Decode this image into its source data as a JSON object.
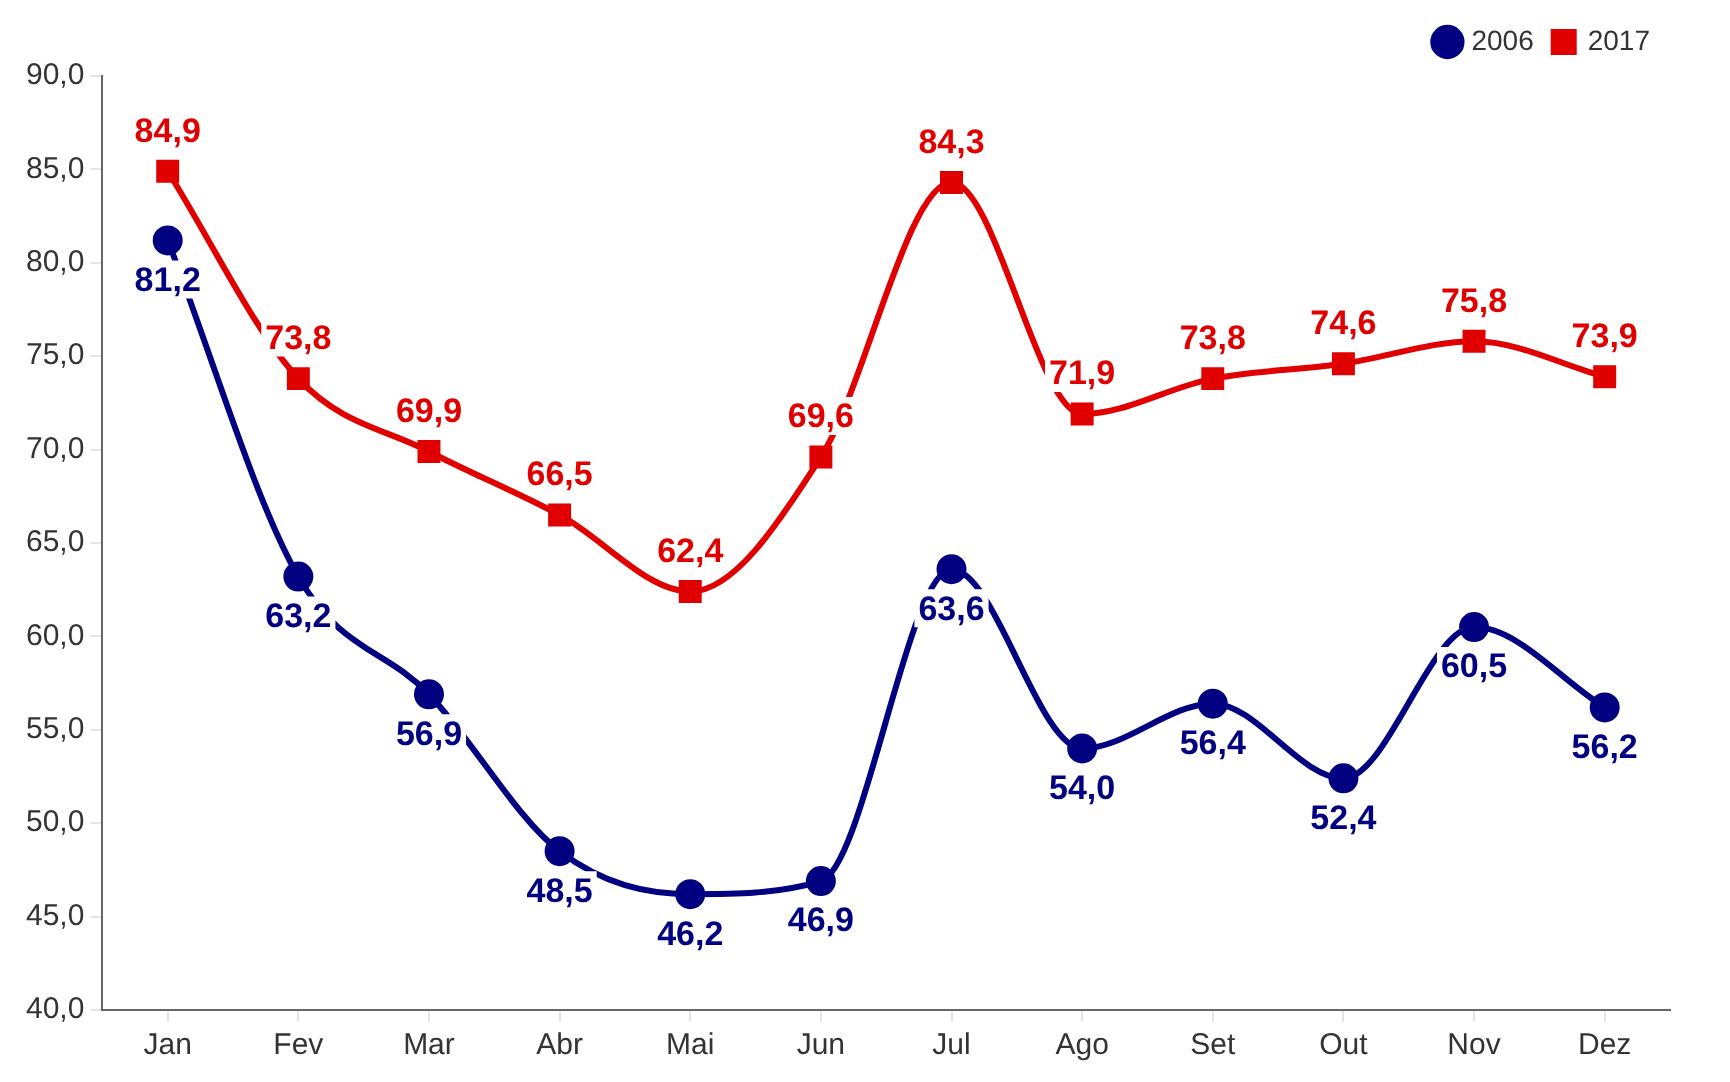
{
  "chart_data": {
    "type": "line",
    "categories": [
      "Jan",
      "Fev",
      "Mar",
      "Abr",
      "Mai",
      "Jun",
      "Jul",
      "Ago",
      "Set",
      "Out",
      "Nov",
      "Dez"
    ],
    "series": [
      {
        "name": "2006",
        "color": "#000080",
        "values": [
          81.2,
          63.2,
          56.9,
          48.5,
          46.2,
          46.9,
          63.6,
          54.0,
          56.4,
          52.4,
          60.5,
          56.2
        ],
        "value_labels": [
          "81,2",
          "63,2",
          "56,9",
          "48,5",
          "46,2",
          "46,9",
          "63,6",
          "54,0",
          "56,4",
          "52,4",
          "60,5",
          "56,2"
        ],
        "marker": "circle"
      },
      {
        "name": "2017",
        "color": "#e00000",
        "values": [
          84.9,
          73.8,
          69.9,
          66.5,
          62.4,
          69.6,
          84.3,
          71.9,
          73.8,
          74.6,
          75.8,
          73.9
        ],
        "value_labels": [
          "84,9",
          "73,8",
          "69,9",
          "66,5",
          "62,4",
          "69,6",
          "84,3",
          "71,9",
          "73,8",
          "74,6",
          "75,8",
          "73,9"
        ],
        "marker": "square"
      }
    ],
    "ylim": [
      40,
      90
    ],
    "yticks": [
      {
        "value": 40,
        "label": "40,0"
      },
      {
        "value": 45,
        "label": "45,0"
      },
      {
        "value": 50,
        "label": "50,0"
      },
      {
        "value": 55,
        "label": "55,0"
      },
      {
        "value": 60,
        "label": "60,0"
      },
      {
        "value": 65,
        "label": "65,0"
      },
      {
        "value": 70,
        "label": "70,0"
      },
      {
        "value": 75,
        "label": "75,0"
      },
      {
        "value": 80,
        "label": "80,0"
      },
      {
        "value": 85,
        "label": "85,0"
      },
      {
        "value": 90,
        "label": "90,0"
      }
    ],
    "grid": false,
    "legend": "top right"
  }
}
